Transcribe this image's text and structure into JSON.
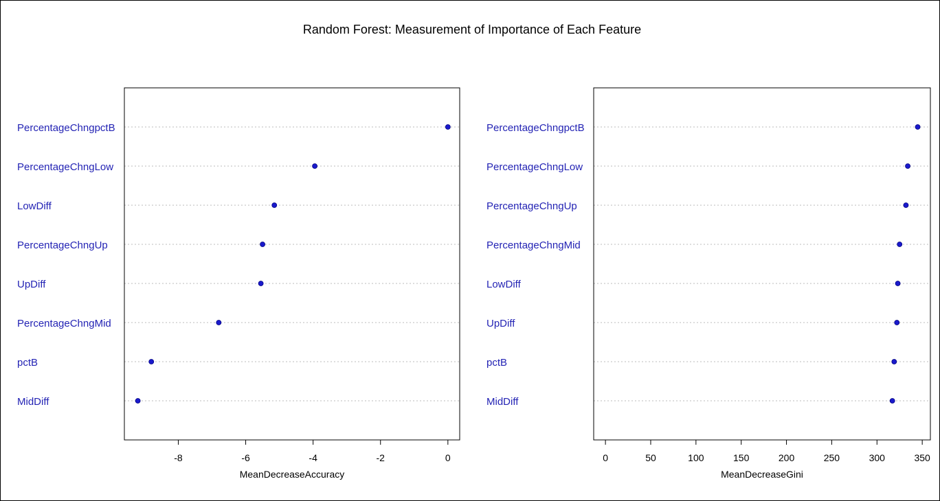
{
  "title": "Random Forest: Measurement of Importance of Each Feature",
  "colors": {
    "point": "#1a1acc",
    "label": "#2323b4",
    "grid": "#bbbbbb",
    "axis": "#000000"
  },
  "chart_data": [
    {
      "type": "scatter",
      "title": "",
      "xlabel": "MeanDecreaseAccuracy",
      "ylabel": "",
      "xlim": [
        -9.6,
        0.35
      ],
      "xticks": [
        -8,
        -6,
        -4,
        -2,
        0
      ],
      "xtick_labels": [
        "-8",
        "-6",
        "-4",
        "-2",
        "0"
      ],
      "grid": "dotted horizontal",
      "categories": [
        "PercentageChngpctB",
        "PercentageChngLow",
        "LowDiff",
        "PercentageChngUp",
        "UpDiff",
        "PercentageChngMid",
        "pctB",
        "MidDiff"
      ],
      "values": [
        0.0,
        -3.95,
        -5.15,
        -5.5,
        -5.55,
        -6.8,
        -8.8,
        -9.2
      ]
    },
    {
      "type": "scatter",
      "title": "",
      "xlabel": "MeanDecreaseGini",
      "ylabel": "",
      "xlim": [
        -13,
        359
      ],
      "xticks": [
        0,
        50,
        100,
        150,
        200,
        250,
        300,
        350
      ],
      "xtick_labels": [
        "0",
        "50",
        "100",
        "150",
        "200",
        "250",
        "300",
        "350"
      ],
      "grid": "dotted horizontal",
      "categories": [
        "PercentageChngpctB",
        "PercentageChngLow",
        "PercentageChngUp",
        "PercentageChngMid",
        "LowDiff",
        "UpDiff",
        "pctB",
        "MidDiff"
      ],
      "values": [
        345,
        334,
        332,
        325,
        323,
        322,
        319,
        317
      ]
    }
  ]
}
